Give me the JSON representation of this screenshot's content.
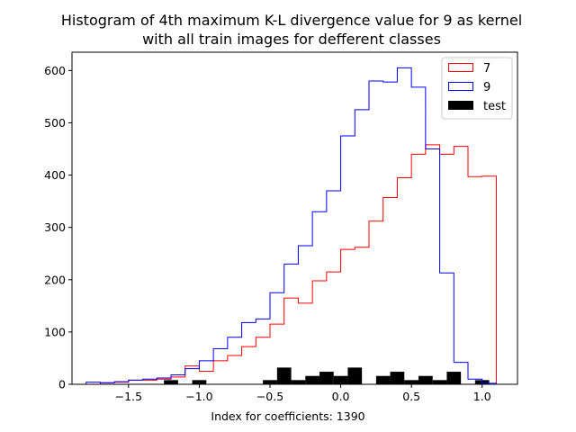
{
  "chart_data": {
    "type": "histogram",
    "title": "Histogram of 4th maximum K-L divergence value for 9 as kernel",
    "subtitle": "with all train images for defferent classes",
    "xlabel": "Index for coefficients: 1390",
    "ylabel": "",
    "xlim": [
      -1.9,
      1.25
    ],
    "ylim": [
      0,
      635
    ],
    "x_ticks": [
      -1.5,
      -1.0,
      -0.5,
      0.0,
      0.5,
      1.0
    ],
    "x_tick_labels": [
      "−1.5",
      "−1.0",
      "−0.5",
      "0.0",
      "0.5",
      "1.0"
    ],
    "y_ticks": [
      0,
      100,
      200,
      300,
      400,
      500,
      600
    ],
    "y_tick_labels": [
      "0",
      "100",
      "200",
      "300",
      "400",
      "500",
      "600"
    ],
    "legend_position": "top-right",
    "grid": false,
    "series": [
      {
        "name": "7",
        "style": "step",
        "color": "#ff0000",
        "edges": [
          -1.7,
          -1.6,
          -1.5,
          -1.4,
          -1.3,
          -1.2,
          -1.1,
          -1.0,
          -0.9,
          -0.8,
          -0.7,
          -0.6,
          -0.5,
          -0.4,
          -0.3,
          -0.2,
          -0.1,
          0.0,
          0.1,
          0.2,
          0.3,
          0.4,
          0.5,
          0.6,
          0.7,
          0.8,
          0.9,
          1.0,
          1.1
        ],
        "values": [
          3,
          4,
          8,
          8,
          10,
          14,
          35,
          25,
          45,
          55,
          72,
          90,
          115,
          165,
          155,
          198,
          215,
          258,
          262,
          312,
          357,
          395,
          440,
          458,
          440,
          455,
          397,
          398
        ]
      },
      {
        "name": "9",
        "style": "step",
        "color": "#0000ff",
        "edges": [
          -1.8,
          -1.7,
          -1.6,
          -1.5,
          -1.4,
          -1.3,
          -1.2,
          -1.1,
          -1.0,
          -0.9,
          -0.8,
          -0.7,
          -0.6,
          -0.5,
          -0.4,
          -0.3,
          -0.2,
          -0.1,
          0.0,
          0.1,
          0.2,
          0.3,
          0.4,
          0.5,
          0.6,
          0.7,
          0.8,
          0.9,
          1.0,
          1.1
        ],
        "values": [
          4,
          3,
          5,
          8,
          10,
          12,
          18,
          30,
          45,
          68,
          90,
          118,
          125,
          175,
          230,
          265,
          330,
          370,
          475,
          525,
          580,
          578,
          605,
          568,
          450,
          213,
          42,
          10,
          2
        ]
      },
      {
        "name": "test",
        "style": "bar",
        "color": "#000000",
        "edges": [
          -1.25,
          -1.15,
          -1.05,
          -0.95,
          -0.85,
          -0.75,
          -0.65,
          -0.55,
          -0.45,
          -0.35,
          -0.25,
          -0.15,
          -0.05,
          0.05,
          0.15,
          0.25,
          0.35,
          0.45,
          0.55,
          0.65,
          0.75,
          0.85,
          0.95,
          1.05
        ],
        "values": [
          8,
          0,
          8,
          0,
          0,
          0,
          0,
          8,
          32,
          8,
          16,
          24,
          16,
          32,
          0,
          16,
          24,
          8,
          16,
          8,
          24,
          0,
          8
        ]
      }
    ]
  }
}
